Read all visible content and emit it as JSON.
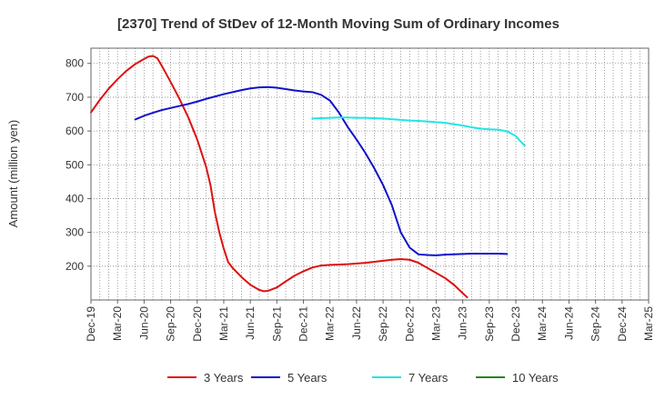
{
  "chart_data": {
    "type": "line",
    "title": "[2370]  Trend of StDev of 12-Month Moving Sum of Ordinary Incomes",
    "ylabel": "Amount (million yen)",
    "xlabel": "",
    "ylim": [
      100,
      845
    ],
    "yticks": [
      200,
      300,
      400,
      500,
      600,
      700,
      800
    ],
    "x_tick_labels": [
      "Dec-19",
      "Mar-20",
      "Jun-20",
      "Sep-20",
      "Dec-20",
      "Mar-21",
      "Jun-21",
      "Sep-21",
      "Dec-21",
      "Mar-22",
      "Jun-22",
      "Sep-22",
      "Dec-22",
      "Mar-23",
      "Jun-23",
      "Sep-23",
      "Dec-23",
      "Mar-24",
      "Jun-24",
      "Sep-24",
      "Dec-24",
      "Mar-25"
    ],
    "grid": true,
    "legend_position": "bottom",
    "series": [
      {
        "name": "3 Years",
        "color": "#dd1111",
        "points": [
          [
            0,
            655
          ],
          [
            1,
            692
          ],
          [
            2,
            725
          ],
          [
            3,
            753
          ],
          [
            4,
            778
          ],
          [
            5,
            798
          ],
          [
            6,
            813
          ],
          [
            6.5,
            820
          ],
          [
            7,
            822
          ],
          [
            7.5,
            815
          ],
          [
            8,
            793
          ],
          [
            9,
            745
          ],
          [
            10,
            695
          ],
          [
            11,
            640
          ],
          [
            12,
            575
          ],
          [
            13,
            495
          ],
          [
            13.5,
            440
          ],
          [
            14,
            360
          ],
          [
            14.5,
            300
          ],
          [
            15,
            252
          ],
          [
            15.5,
            212
          ],
          [
            16,
            195
          ],
          [
            17,
            168
          ],
          [
            18,
            145
          ],
          [
            19,
            130
          ],
          [
            19.5,
            126
          ],
          [
            20,
            127
          ],
          [
            21,
            137
          ],
          [
            22,
            155
          ],
          [
            23,
            172
          ],
          [
            24,
            185
          ],
          [
            25,
            196
          ],
          [
            26,
            202
          ],
          [
            27,
            204
          ],
          [
            28,
            205
          ],
          [
            29,
            206
          ],
          [
            30,
            208
          ],
          [
            31,
            210
          ],
          [
            32,
            213
          ],
          [
            33,
            216
          ],
          [
            34,
            219
          ],
          [
            35,
            221
          ],
          [
            36,
            219
          ],
          [
            37,
            210
          ],
          [
            38,
            195
          ],
          [
            39,
            180
          ],
          [
            40,
            165
          ],
          [
            41,
            145
          ],
          [
            42,
            120
          ],
          [
            42.5,
            108
          ]
        ]
      },
      {
        "name": "5 Years",
        "color": "#1111cc",
        "points": [
          [
            5,
            634
          ],
          [
            6,
            645
          ],
          [
            7,
            654
          ],
          [
            8,
            662
          ],
          [
            9,
            668
          ],
          [
            10,
            674
          ],
          [
            11,
            680
          ],
          [
            12,
            687
          ],
          [
            13,
            695
          ],
          [
            14,
            702
          ],
          [
            15,
            709
          ],
          [
            16,
            715
          ],
          [
            17,
            721
          ],
          [
            18,
            726
          ],
          [
            19,
            729
          ],
          [
            20,
            730
          ],
          [
            21,
            728
          ],
          [
            22,
            724
          ],
          [
            23,
            720
          ],
          [
            24,
            717
          ],
          [
            25,
            715
          ],
          [
            26,
            707
          ],
          [
            27,
            690
          ],
          [
            28,
            655
          ],
          [
            29,
            612
          ],
          [
            30,
            575
          ],
          [
            31,
            535
          ],
          [
            32,
            490
          ],
          [
            33,
            440
          ],
          [
            34,
            380
          ],
          [
            35,
            300
          ],
          [
            36,
            255
          ],
          [
            37,
            235
          ],
          [
            38,
            233
          ],
          [
            39,
            232
          ],
          [
            40,
            234
          ],
          [
            41,
            235
          ],
          [
            42,
            236
          ],
          [
            43,
            237
          ],
          [
            44,
            237
          ],
          [
            45,
            237
          ],
          [
            46,
            237
          ],
          [
            47,
            236
          ]
        ]
      },
      {
        "name": "7 Years",
        "color": "#22e5e5",
        "points": [
          [
            25,
            637
          ],
          [
            26,
            638
          ],
          [
            27,
            639
          ],
          [
            28,
            640
          ],
          [
            29,
            640
          ],
          [
            30,
            639
          ],
          [
            31,
            639
          ],
          [
            32,
            638
          ],
          [
            33,
            637
          ],
          [
            34,
            635
          ],
          [
            35,
            633
          ],
          [
            36,
            631
          ],
          [
            37,
            630
          ],
          [
            38,
            628
          ],
          [
            39,
            626
          ],
          [
            40,
            624
          ],
          [
            41,
            620
          ],
          [
            42,
            616
          ],
          [
            43,
            611
          ],
          [
            44,
            607
          ],
          [
            45,
            605
          ],
          [
            46,
            604
          ],
          [
            47,
            599
          ],
          [
            48,
            585
          ],
          [
            48.5,
            570
          ],
          [
            49,
            557
          ]
        ]
      },
      {
        "name": "10 Years",
        "color": "#228822",
        "points": []
      }
    ]
  }
}
